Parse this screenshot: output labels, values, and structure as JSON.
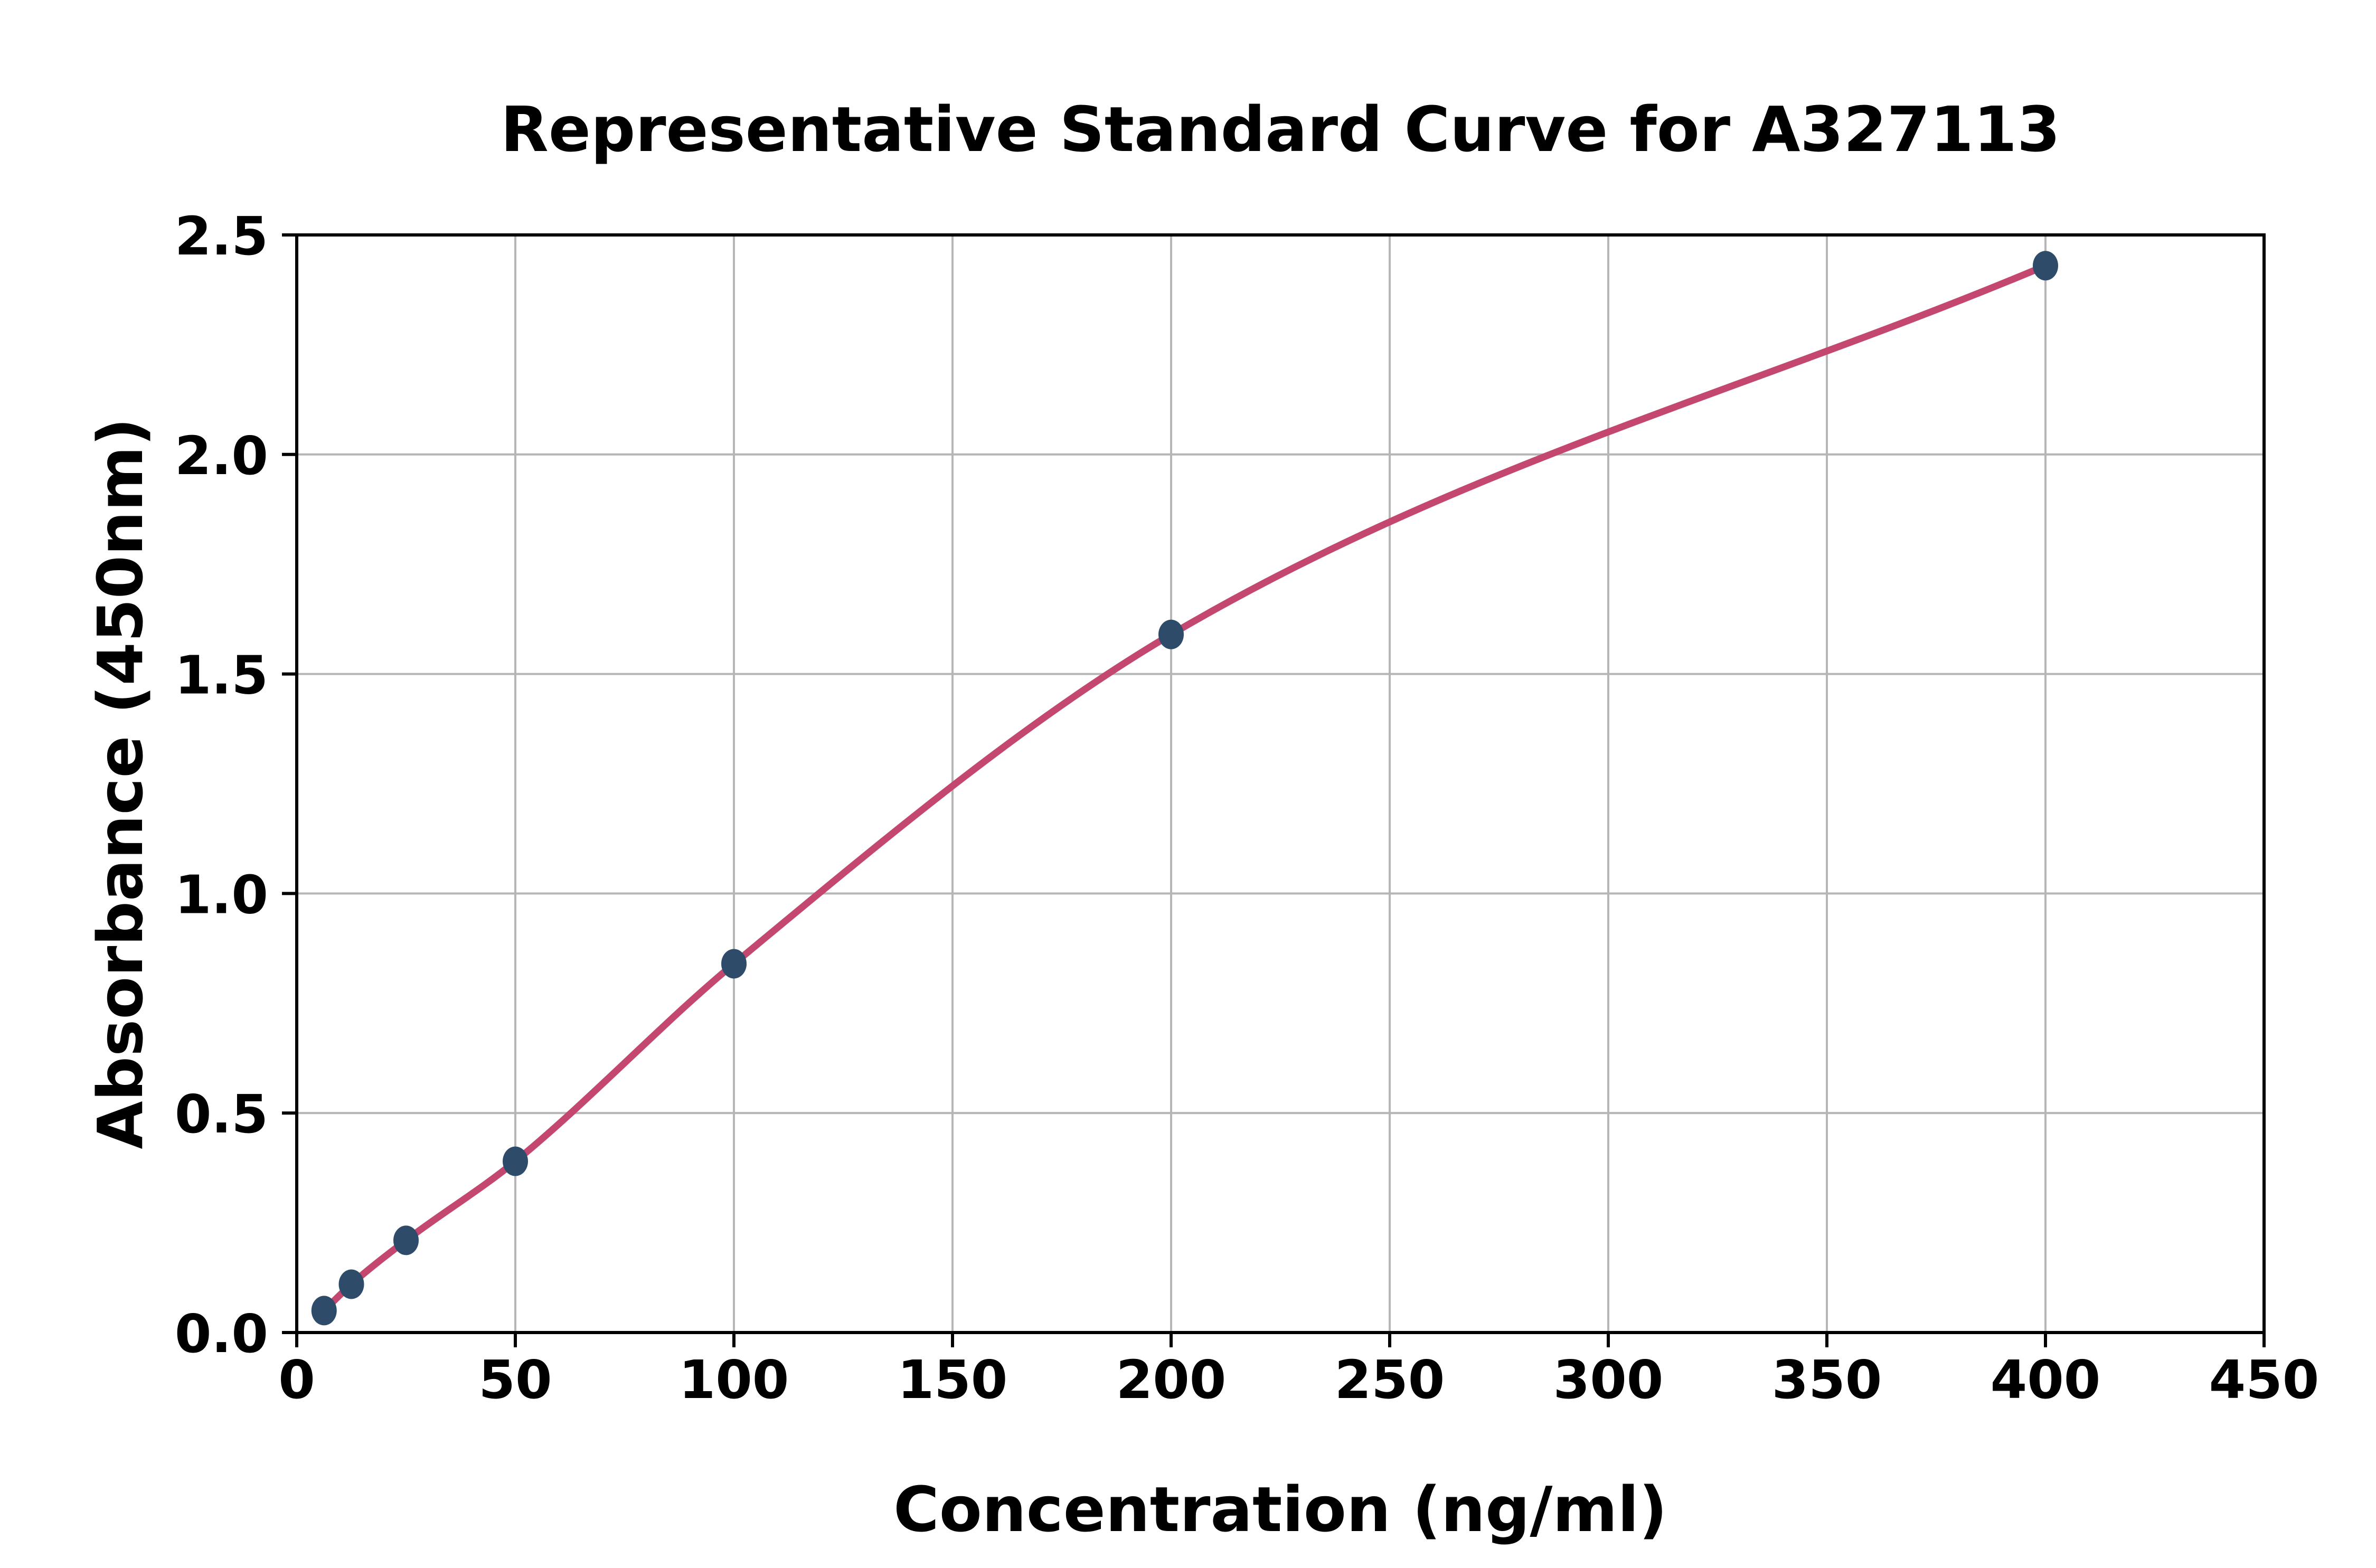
{
  "chart": {
    "title": "Representative Standard Curve for A327113",
    "xlabel": "Concentration (ng/ml)",
    "ylabel": "Absorbance (450nm)"
  },
  "chart_data": {
    "type": "scatter",
    "title": "Representative Standard Curve for A327113",
    "xlabel": "Concentration (ng/ml)",
    "ylabel": "Absorbance (450nm)",
    "xlim": [
      0,
      450
    ],
    "ylim": [
      0.0,
      2.5
    ],
    "grid": true,
    "legend": "none",
    "xticks": [
      0,
      50,
      100,
      150,
      200,
      250,
      300,
      350,
      400,
      450
    ],
    "xticklabels": [
      "0",
      "50",
      "100",
      "150",
      "200",
      "250",
      "300",
      "350",
      "400",
      "450"
    ],
    "yticks": [
      0.0,
      0.5,
      1.0,
      1.5,
      2.0,
      2.5
    ],
    "yticklabels": [
      "0.0",
      "0.5",
      "1.0",
      "1.5",
      "2.0",
      "2.5"
    ],
    "series": [
      {
        "name": "standards",
        "style": "markers",
        "x": [
          6.25,
          12.5,
          25,
          50,
          100,
          200,
          400
        ],
        "y": [
          0.05,
          0.11,
          0.21,
          0.39,
          0.84,
          1.59,
          2.43
        ]
      },
      {
        "name": "fitted-curve",
        "style": "smooth-line",
        "x": [
          6.25,
          12.5,
          25,
          50,
          100,
          200,
          400
        ],
        "y": [
          0.05,
          0.11,
          0.21,
          0.39,
          0.84,
          1.59,
          2.43
        ]
      }
    ],
    "colors": {
      "marker": "#2F4B6A",
      "line": "#C3476F",
      "grid": "#B6B6B6",
      "spine": "#000000",
      "tick": "#000000",
      "text": "#000000",
      "background": "#FFFFFF"
    }
  }
}
